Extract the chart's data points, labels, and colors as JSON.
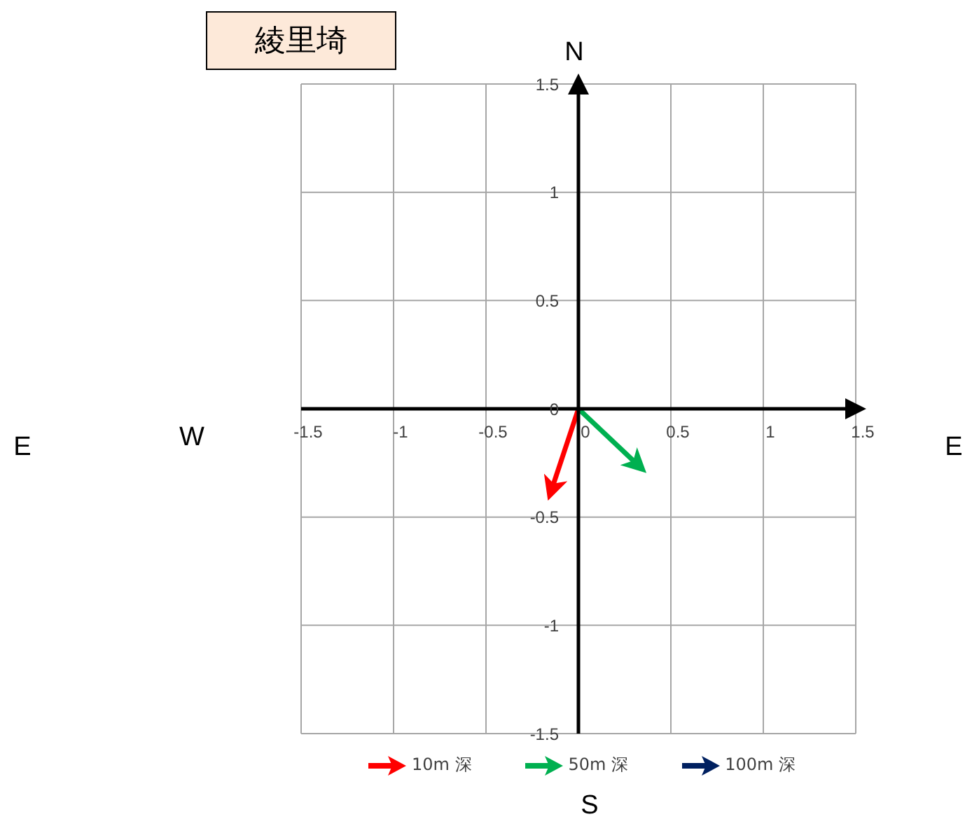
{
  "chart_data": {
    "type": "line",
    "title": "綾里埼",
    "series": [
      {
        "name": "10m 深",
        "color": "#ff0000",
        "x": [
          0,
          -0.14
        ],
        "values": [
          0,
          -0.36
        ]
      },
      {
        "name": "50m 深",
        "color": "#00b050",
        "x": [
          0,
          0.31
        ],
        "values": [
          0,
          -0.25
        ]
      },
      {
        "name": "100m 深",
        "color": "#002060"
      }
    ],
    "xlim": [
      -1.5,
      1.5
    ],
    "xticks": [
      -1.5,
      -1,
      -0.5,
      0,
      0.5,
      1,
      1.5
    ],
    "ylim": [
      -1.5,
      1.5
    ],
    "yticks": [
      -1.5,
      -1,
      -0.5,
      0,
      0.5,
      1,
      1.5
    ],
    "grid": true,
    "legend": "bottom",
    "marker": "none",
    "line_style": "solid",
    "annotations": [
      "N",
      "S",
      "W",
      "E",
      "E"
    ]
  }
}
